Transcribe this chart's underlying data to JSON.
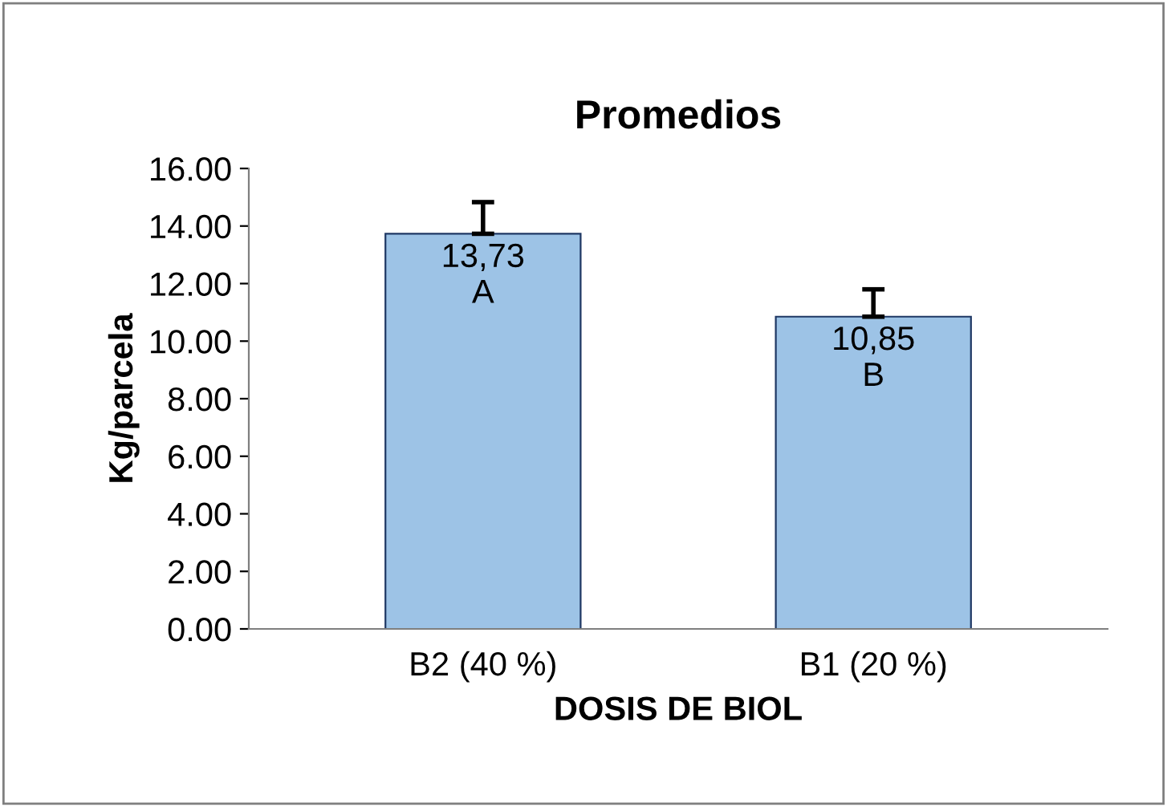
{
  "chart_data": {
    "type": "bar",
    "title": "Promedios",
    "xlabel": "DOSIS DE BIOL",
    "ylabel": "Kg/parcela",
    "categories": [
      "B2 (40 %)",
      "B1 (20 %)"
    ],
    "values": [
      13.73,
      10.85
    ],
    "value_labels": [
      "13,73\nA",
      "10,85\nB"
    ],
    "errors": [
      [
        13.73,
        14.83
      ],
      [
        10.85,
        11.8
      ]
    ],
    "color": "#9dc3e6",
    "ylim": [
      0,
      16
    ],
    "yticks": [
      {
        "value": 0,
        "label": "0.00"
      },
      {
        "value": 2,
        "label": "2.00"
      },
      {
        "value": 4,
        "label": "4.00"
      },
      {
        "value": 6,
        "label": "6.00"
      },
      {
        "value": 8,
        "label": "8.00"
      },
      {
        "value": 10,
        "label": "10.00"
      },
      {
        "value": 12,
        "label": "12.00"
      },
      {
        "value": 14,
        "label": "14.00"
      },
      {
        "value": 16,
        "label": "16.00"
      }
    ],
    "grid": false
  }
}
